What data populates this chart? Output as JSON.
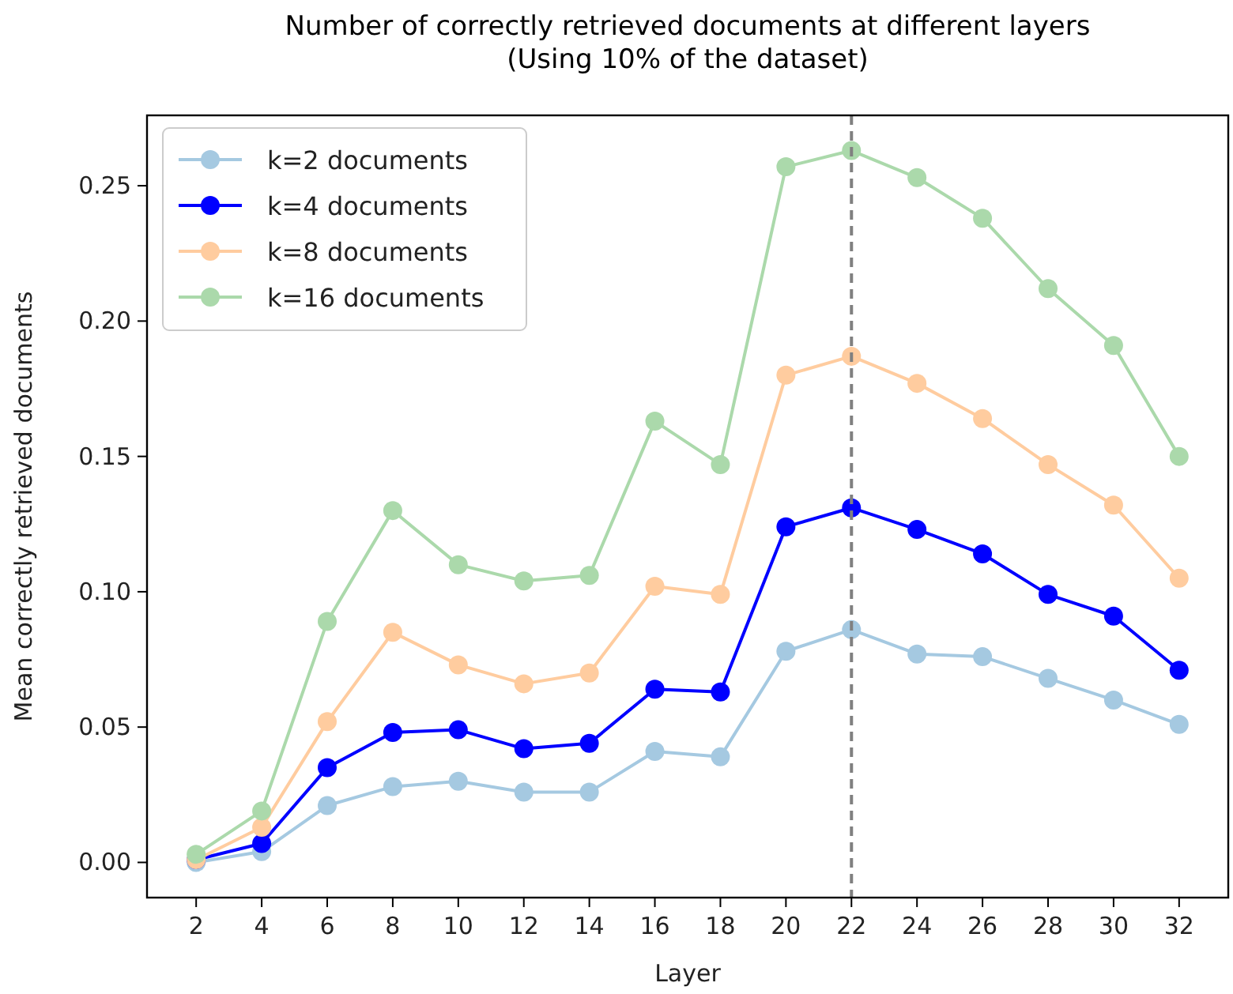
{
  "chart_data": {
    "type": "line",
    "title": "Number of correctly retrieved documents at different layers\n(Using 10% of the dataset)",
    "xlabel": "Layer",
    "ylabel": "Mean correctly retrieved documents",
    "x": [
      2,
      4,
      6,
      8,
      10,
      12,
      14,
      16,
      18,
      20,
      22,
      24,
      26,
      28,
      30,
      32
    ],
    "series": [
      {
        "name": "k=2 documents",
        "color": "#a5c9e1",
        "values": [
          0.0,
          0.004,
          0.021,
          0.028,
          0.03,
          0.026,
          0.026,
          0.041,
          0.039,
          0.078,
          0.086,
          0.077,
          0.076,
          0.068,
          0.06,
          0.051
        ]
      },
      {
        "name": "k=4 documents",
        "color": "#0000ff",
        "values": [
          0.001,
          0.007,
          0.035,
          0.048,
          0.049,
          0.042,
          0.044,
          0.064,
          0.063,
          0.124,
          0.131,
          0.123,
          0.114,
          0.099,
          0.091,
          0.071
        ]
      },
      {
        "name": "k=8 documents",
        "color": "#ffcc9f",
        "values": [
          0.001,
          0.013,
          0.052,
          0.085,
          0.073,
          0.066,
          0.07,
          0.102,
          0.099,
          0.18,
          0.187,
          0.177,
          0.164,
          0.147,
          0.132,
          0.105
        ]
      },
      {
        "name": "k=16 documents",
        "color": "#abd9ab",
        "values": [
          0.003,
          0.019,
          0.089,
          0.13,
          0.11,
          0.104,
          0.106,
          0.163,
          0.147,
          0.257,
          0.263,
          0.253,
          0.238,
          0.212,
          0.191,
          0.15
        ]
      }
    ],
    "xlim": [
      0.5,
      33.5
    ],
    "xticks": [
      2,
      4,
      6,
      8,
      10,
      12,
      14,
      16,
      18,
      20,
      22,
      24,
      26,
      28,
      30,
      32
    ],
    "ylim": [
      -0.013,
      0.276
    ],
    "yticks": [
      {
        "value": 0,
        "label": "0.00"
      },
      {
        "value": 0.05,
        "label": "0.05"
      },
      {
        "value": 0.1,
        "label": "0.10"
      },
      {
        "value": 0.15,
        "label": "0.15"
      },
      {
        "value": 0.2,
        "label": "0.20"
      },
      {
        "value": 0.25,
        "label": "0.25"
      }
    ],
    "ref_lines": [
      {
        "axis": "x",
        "value": 22,
        "color": "#808080",
        "line_style": "dashed"
      }
    ],
    "legend": "top left",
    "marker": "circle",
    "line_style": "solid",
    "grid": false
  }
}
